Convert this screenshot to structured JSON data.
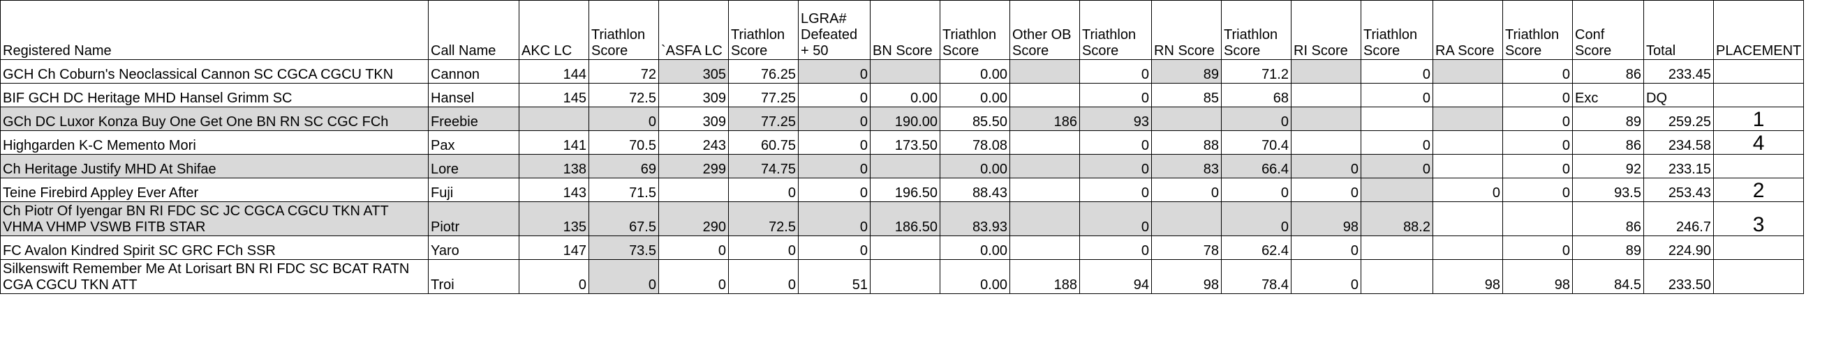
{
  "columns": [
    "Registered Name",
    "Call Name",
    "AKC LC",
    "Triathlon Score",
    "`ASFA LC",
    "Triathlon Score",
    "LGRA# Defeated + 50",
    "BN Score",
    "Triathlon Score",
    "Other OB Score",
    "Triathlon Score",
    "RN Score",
    "Triathlon Score",
    "RI Score",
    "Triathlon Score",
    "RA Score",
    "Triathlon Score",
    "Conf Score",
    "Total",
    "PLACEMENT"
  ],
  "rows": [
    {
      "cells": [
        "GCH Ch Coburn's Neoclassical Cannon SC CGCA CGCU TKN",
        "Cannon",
        "144",
        "72",
        "305",
        "76.25",
        "0",
        "",
        "0.00",
        "",
        "0",
        "89",
        "71.2",
        "",
        "0",
        "",
        "0",
        "86",
        "233.45",
        ""
      ],
      "shade": [
        0,
        0,
        0,
        0,
        1,
        0,
        1,
        1,
        0,
        1,
        0,
        1,
        0,
        1,
        0,
        1,
        0,
        0,
        0,
        0
      ]
    },
    {
      "cells": [
        "BIF GCH DC Heritage MHD Hansel Grimm SC",
        "Hansel",
        "145",
        "72.5",
        "309",
        "77.25",
        "0",
        "0.00",
        "0.00",
        "",
        "0",
        "85",
        "68",
        "",
        "0",
        "",
        "0",
        "Exc",
        "DQ",
        ""
      ],
      "shade": [
        0,
        0,
        0,
        0,
        0,
        0,
        0,
        0,
        0,
        0,
        0,
        0,
        0,
        0,
        0,
        0,
        0,
        0,
        0,
        0
      ]
    },
    {
      "cells": [
        "GCh DC Luxor Konza Buy One Get One BN RN SC CGC FCh",
        "Freebie",
        "",
        "0",
        "309",
        "77.25",
        "0",
        "190.00",
        "85.50",
        "186",
        "93",
        "",
        "0",
        "",
        "",
        "",
        "0",
        "89",
        "259.25",
        "1"
      ],
      "shade": [
        1,
        1,
        1,
        1,
        0,
        1,
        1,
        1,
        0,
        1,
        1,
        1,
        1,
        1,
        0,
        1,
        0,
        0,
        0,
        0
      ]
    },
    {
      "cells": [
        "Highgarden K-C Memento Mori",
        "Pax",
        "141",
        "70.5",
        "243",
        "60.75",
        "0",
        "173.50",
        "78.08",
        "",
        "0",
        "88",
        "70.4",
        "",
        "0",
        "",
        "0",
        "86",
        "234.58",
        "4"
      ],
      "shade": [
        0,
        0,
        0,
        0,
        0,
        0,
        0,
        0,
        0,
        0,
        0,
        0,
        0,
        0,
        0,
        0,
        0,
        0,
        0,
        0
      ]
    },
    {
      "cells": [
        "Ch Heritage Justify MHD At Shifae",
        "Lore",
        "138",
        "69",
        "299",
        "74.75",
        "0",
        "",
        "0.00",
        "",
        "0",
        "83",
        "66.4",
        "0",
        "0",
        "",
        "0",
        "92",
        "233.15",
        ""
      ],
      "shade": [
        1,
        1,
        1,
        1,
        1,
        1,
        1,
        1,
        1,
        1,
        1,
        1,
        1,
        1,
        1,
        0,
        0,
        0,
        0,
        0
      ]
    },
    {
      "cells": [
        "Teine Firebird Appley Ever After",
        "Fuji",
        "143",
        "71.5",
        "",
        "0",
        "0",
        "196.50",
        "88.43",
        "",
        "0",
        "0",
        "0",
        "0",
        "",
        "0",
        "0",
        "93.5",
        "253.43",
        "2"
      ],
      "shade": [
        0,
        0,
        0,
        0,
        0,
        0,
        0,
        0,
        0,
        0,
        0,
        0,
        0,
        0,
        1,
        0,
        0,
        0,
        0,
        0
      ]
    },
    {
      "cells": [
        "Ch Piotr Of Iyengar BN RI FDC SC JC CGCA CGCU TKN ATT VHMA VHMP VSWB FITB STAR",
        "Piotr",
        "135",
        "67.5",
        "290",
        "72.5",
        "0",
        "186.50",
        "83.93",
        "",
        "0",
        "",
        "0",
        "98",
        "88.2",
        "",
        "",
        "86",
        "246.7",
        "3"
      ],
      "shade": [
        1,
        1,
        1,
        1,
        1,
        1,
        1,
        1,
        1,
        1,
        1,
        1,
        1,
        1,
        1,
        0,
        0,
        0,
        0,
        0
      ]
    },
    {
      "cells": [
        "FC Avalon Kindred Spirit SC GRC FCh SSR",
        "Yaro",
        "147",
        "73.5",
        "0",
        "0",
        "0",
        "",
        "0.00",
        "",
        "0",
        "78",
        "62.4",
        "0",
        "",
        "",
        "0",
        "89",
        "224.90",
        ""
      ],
      "shade": [
        0,
        0,
        0,
        1,
        0,
        0,
        0,
        0,
        0,
        0,
        0,
        0,
        0,
        0,
        0,
        0,
        0,
        0,
        0,
        0
      ]
    },
    {
      "cells": [
        "Silkenswift Remember Me At Lorisart BN RI FDC SC BCAT RATN CGA CGCU TKN ATT",
        "Troi",
        "0",
        "0",
        "0",
        "0",
        "51",
        "",
        "0.00",
        "188",
        "94",
        "98",
        "78.4",
        "0",
        "",
        "98",
        "98",
        "84.5",
        "233.50",
        ""
      ],
      "shade": [
        0,
        0,
        0,
        1,
        0,
        0,
        0,
        0,
        0,
        0,
        0,
        0,
        0,
        0,
        0,
        0,
        0,
        0,
        0,
        0
      ]
    }
  ]
}
